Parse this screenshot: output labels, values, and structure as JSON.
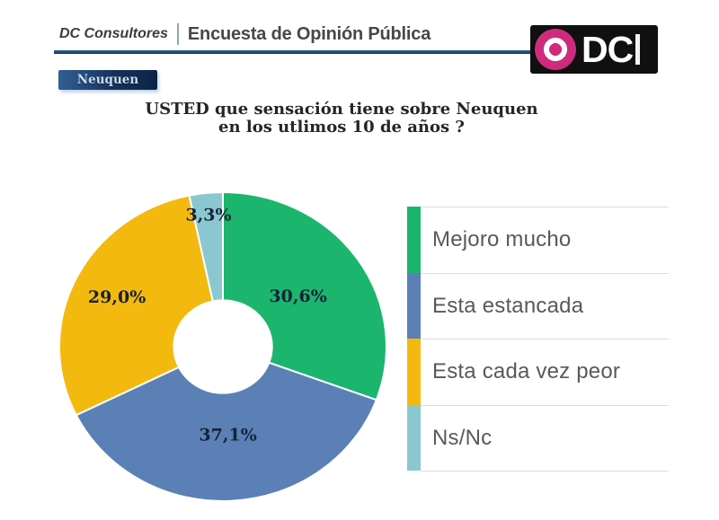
{
  "header": {
    "brand": "DC Consultores",
    "separator": "|",
    "title": "Encuesta de Opinión Pública",
    "logo": {
      "text": "DC",
      "icon": "magenta-donut-circle",
      "bg_color": "#101010",
      "accent_color": "#ce2b7d"
    }
  },
  "region_badge": {
    "label": "Neuquen",
    "bg_color": "#16335c"
  },
  "question": {
    "line1": "USTED que sensación tiene sobre Neuquen",
    "line2": "en los utlimos 10 de años  ?"
  },
  "chart_data": {
    "type": "pie",
    "donut": true,
    "inner_radius_ratio": 0.3,
    "start_angle_deg": 0,
    "direction": "clockwise",
    "title": "USTED que sensación tiene sobre Neuquen en los utlimos 10 de años ?",
    "categories": [
      "Mejoro mucho",
      "Esta estancada",
      "Esta cada vez peor",
      "Ns/Nc"
    ],
    "values": [
      30.6,
      37.1,
      29.0,
      3.3
    ],
    "value_labels": [
      "30,6%",
      "37,1%",
      "29,0%",
      "3,3%"
    ],
    "colors": [
      "#1cb56e",
      "#5a80b6",
      "#f4b90f",
      "#8bc7d1"
    ],
    "slice_border_color": "#ffffff",
    "label_color": "#152238",
    "legend_position": "right",
    "grid": false
  }
}
